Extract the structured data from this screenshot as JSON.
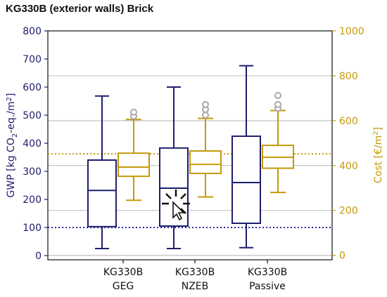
{
  "chart_data": {
    "type": "box",
    "title": "KG330B (exterior walls) Brick",
    "categories": [
      {
        "line1": "KG330B",
        "line2": "GEG"
      },
      {
        "line1": "KG330B",
        "line2": "NZEB"
      },
      {
        "line1": "KG330B",
        "line2": "Passive"
      }
    ],
    "left_axis": {
      "label_parts": [
        "GWP [kg CO",
        "2",
        "-eq./m",
        "2",
        "]"
      ],
      "ylim": [
        -15,
        800
      ],
      "ticks": [
        0,
        100,
        200,
        300,
        400,
        500,
        600,
        700,
        800
      ],
      "color": "#1e1e6e"
    },
    "right_axis": {
      "label_parts": [
        "Cost [€/m",
        "2",
        "]"
      ],
      "ylim": [
        -20,
        1000
      ],
      "ticks": [
        0,
        200,
        400,
        600,
        800,
        1000
      ],
      "color": "#c49a0a"
    },
    "series": [
      {
        "name": "GWP",
        "axis": "left",
        "color": "#1e1e6e",
        "boxes": [
          {
            "whisker_low": 25,
            "q1": 103,
            "median": 232,
            "q3": 340,
            "whisker_high": 568,
            "outliers": []
          },
          {
            "whisker_low": 25,
            "q1": 105,
            "median": 240,
            "q3": 383,
            "whisker_high": 600,
            "outliers": []
          },
          {
            "whisker_low": 28,
            "q1": 115,
            "median": 260,
            "q3": 425,
            "whisker_high": 676,
            "outliers": []
          }
        ]
      },
      {
        "name": "Cost",
        "axis": "right",
        "color": "#c49a0a",
        "boxes": [
          {
            "whisker_low": 245,
            "q1": 352,
            "median": 393,
            "q3": 455,
            "whisker_high": 605,
            "outliers": [
              620,
              638
            ]
          },
          {
            "whisker_low": 260,
            "q1": 365,
            "median": 405,
            "q3": 465,
            "whisker_high": 610,
            "outliers": [
              625,
              650,
              672
            ]
          },
          {
            "whisker_low": 280,
            "q1": 388,
            "median": 437,
            "q3": 490,
            "whisker_high": 645,
            "outliers": [
              655,
              672,
              712
            ]
          }
        ]
      }
    ],
    "reference_lines": [
      {
        "axis": "left",
        "value": 100,
        "color": "#2a2a9a",
        "style": "dotted"
      },
      {
        "axis": "right",
        "value": 452,
        "color": "#c49a0a",
        "style": "dotted"
      }
    ],
    "grid": true,
    "grid_lines_right_axis": [
      0,
      200,
      400,
      600,
      800
    ]
  }
}
